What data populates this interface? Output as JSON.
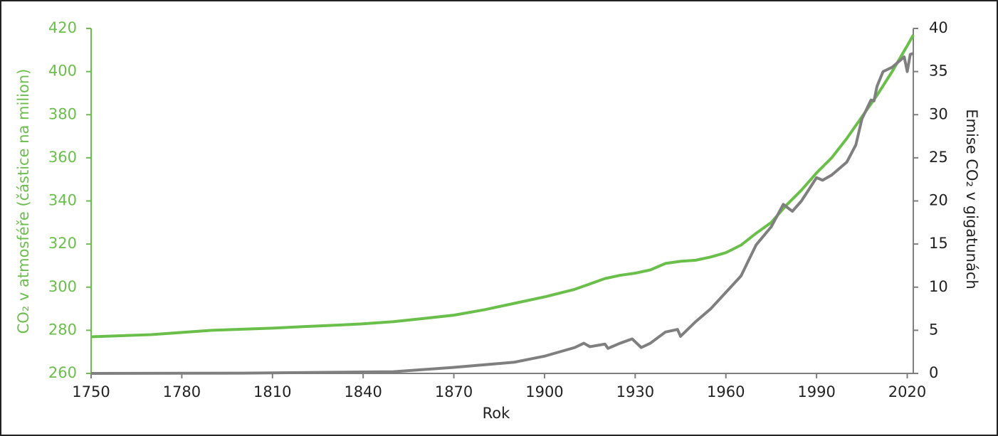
{
  "chart_data": {
    "type": "line",
    "xlabel": "Rok",
    "ylabel": "CO₂ v atmosféře (částice na milion)",
    "y2label": "Emise CO₂ v gigatunách",
    "xlim": [
      1750,
      2022
    ],
    "xticks": [
      1750,
      1780,
      1810,
      1840,
      1870,
      1900,
      1930,
      1960,
      1990,
      2020
    ],
    "ylim": [
      260,
      420
    ],
    "yticks": [
      260,
      280,
      300,
      320,
      340,
      360,
      380,
      400,
      420
    ],
    "y2lim": [
      0,
      40
    ],
    "y2ticks": [
      0,
      5,
      10,
      15,
      20,
      25,
      30,
      35,
      40
    ],
    "grid": false,
    "series": [
      {
        "name": "CO₂ v atmosféře",
        "color": "#6abf4b",
        "axis": "y",
        "x": [
          1750,
          1760,
          1770,
          1780,
          1790,
          1800,
          1810,
          1820,
          1830,
          1840,
          1850,
          1860,
          1870,
          1880,
          1890,
          1900,
          1910,
          1920,
          1925,
          1930,
          1935,
          1940,
          1945,
          1950,
          1955,
          1960,
          1965,
          1970,
          1975,
          1980,
          1985,
          1990,
          1995,
          2000,
          2005,
          2010,
          2015,
          2020,
          2022
        ],
        "values": [
          277,
          277.5,
          278,
          279,
          280,
          280.5,
          281,
          281.7,
          282.3,
          283,
          284,
          285.5,
          287,
          289.5,
          292.5,
          295.5,
          299,
          304,
          305.5,
          306.5,
          308,
          311,
          312,
          312.5,
          314,
          316,
          319.5,
          325,
          330,
          338,
          345,
          353,
          360,
          369,
          379,
          389,
          400,
          412,
          417
        ]
      },
      {
        "name": "Emise CO₂",
        "color": "#7f7f7f",
        "axis": "y2",
        "x": [
          1750,
          1800,
          1850,
          1870,
          1880,
          1890,
          1900,
          1910,
          1913,
          1915,
          1920,
          1921,
          1925,
          1929,
          1932,
          1935,
          1940,
          1944,
          1945,
          1950,
          1955,
          1960,
          1965,
          1970,
          1975,
          1979,
          1982,
          1985,
          1990,
          1992,
          1995,
          2000,
          2003,
          2005,
          2008,
          2009,
          2010,
          2012,
          2015,
          2019,
          2020,
          2021,
          2022
        ],
        "values": [
          0,
          0.03,
          0.2,
          0.7,
          1.0,
          1.3,
          2.0,
          3.0,
          3.5,
          3.1,
          3.4,
          2.9,
          3.5,
          4.0,
          3.0,
          3.5,
          4.8,
          5.1,
          4.3,
          6.0,
          7.5,
          9.4,
          11.3,
          14.9,
          17.0,
          19.6,
          18.8,
          20.0,
          22.7,
          22.4,
          23.0,
          24.5,
          26.5,
          29.5,
          31.7,
          31.6,
          33.3,
          35.0,
          35.5,
          36.7,
          35.0,
          37.0,
          37.1
        ]
      }
    ]
  }
}
